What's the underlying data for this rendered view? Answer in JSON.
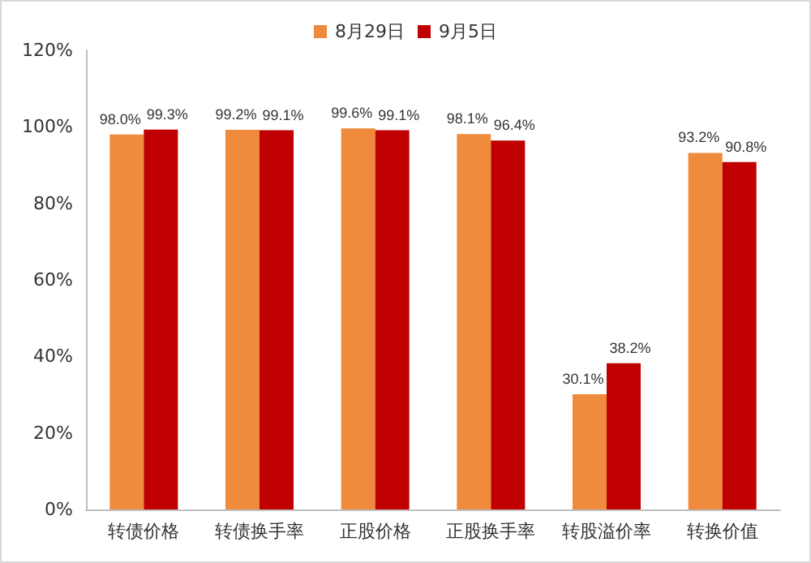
{
  "chart_data": {
    "type": "bar",
    "categories": [
      "转债价格",
      "转债换手率",
      "正股价格",
      "正股换手率",
      "转股溢价率",
      "转换价值"
    ],
    "series": [
      {
        "name": "8月29日",
        "color": "#f08a3c",
        "values": [
          98.0,
          99.2,
          99.6,
          98.1,
          30.1,
          93.2
        ],
        "value_labels": [
          "98.0%",
          "99.2%",
          "99.6%",
          "98.1%",
          "30.1%",
          "93.2%"
        ]
      },
      {
        "name": "9月5日",
        "color": "#c00000",
        "values": [
          99.3,
          99.1,
          99.1,
          96.4,
          38.2,
          90.8
        ],
        "value_labels": [
          "99.3%",
          "99.1%",
          "99.1%",
          "96.4%",
          "38.2%",
          "90.8%"
        ]
      }
    ],
    "ylim": [
      0,
      120
    ],
    "yticks": [
      {
        "value": 0,
        "label": "0%"
      },
      {
        "value": 20,
        "label": "20%"
      },
      {
        "value": 40,
        "label": "40%"
      },
      {
        "value": 60,
        "label": "60%"
      },
      {
        "value": 80,
        "label": "80%"
      },
      {
        "value": 100,
        "label": "100%"
      },
      {
        "value": 120,
        "label": "120%"
      }
    ],
    "grid": false,
    "legend": "top"
  }
}
